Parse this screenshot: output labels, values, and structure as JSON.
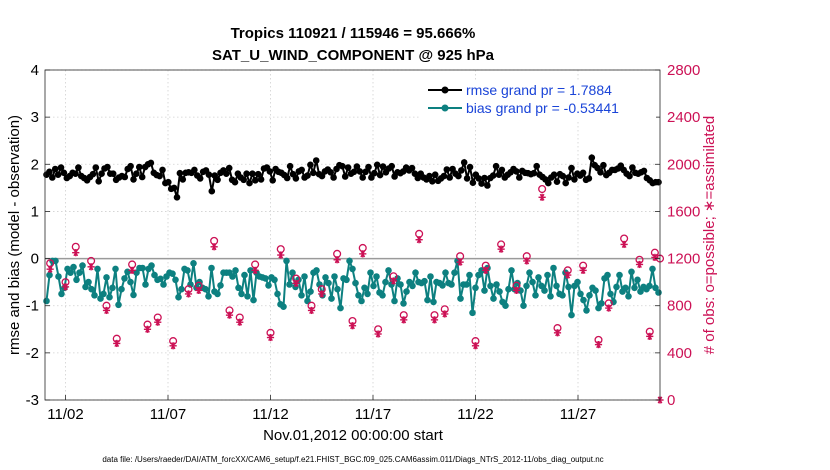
{
  "chart_data": {
    "type": "line",
    "title": "Tropics 110921 / 115946 = 95.666%",
    "subtitle": "SAT_U_WIND_COMPONENT @ 925 hPa",
    "xlabel": "Nov.01,2012 00:00:00 start",
    "ylabel_left": "rmse and bias (model - observation)",
    "ylabel_right": "# of obs: o=possible; ∗=assimilated",
    "xlim": [
      0.5,
      30.5
    ],
    "ylim_left": [
      -3,
      4
    ],
    "ylim_right": [
      0,
      2800
    ],
    "x_ticks": [
      1.5,
      6.5,
      11.5,
      16.5,
      21.5,
      26.5
    ],
    "x_tick_labels": [
      "11/02",
      "11/07",
      "11/12",
      "11/17",
      "11/22",
      "11/27"
    ],
    "y_ticks_left": [
      "-3",
      "-2",
      "-1",
      "0",
      "1",
      "2",
      "3",
      "4"
    ],
    "y_ticks_right": [
      "0",
      "400",
      "800",
      "1200",
      "1600",
      "2000",
      "2400",
      "2800"
    ],
    "zero_line": 0,
    "legend": {
      "placement": "top-right"
    },
    "series": [
      {
        "name": "rmse grand pr = 1.7884",
        "color": "#000000",
        "axis": "left",
        "values": [
          1.78,
          1.84,
          1.72,
          1.9,
          1.78,
          1.93,
          1.82,
          1.71,
          1.75,
          1.82,
          1.8,
          1.93,
          1.75,
          1.71,
          1.66,
          1.73,
          1.79,
          1.93,
          1.64,
          1.8,
          1.91,
          1.94,
          1.8,
          1.8,
          1.67,
          1.72,
          1.75,
          1.73,
          1.9,
          1.96,
          1.68,
          1.8,
          1.94,
          1.73,
          1.94,
          2.0,
          2.03,
          1.82,
          1.77,
          1.75,
          1.88,
          1.6,
          1.62,
          1.48,
          1.5,
          1.3,
          1.81,
          1.68,
          1.82,
          1.83,
          1.82,
          1.88,
          1.76,
          1.7,
          1.84,
          1.87,
          1.78,
          1.43,
          1.76,
          1.67,
          1.82,
          1.87,
          1.8,
          1.92,
          1.67,
          1.62,
          1.8,
          1.72,
          1.67,
          1.8,
          1.6,
          1.8,
          1.66,
          1.79,
          1.68,
          1.91,
          1.93,
          1.85,
          1.66,
          1.9,
          1.84,
          1.82,
          1.77,
          1.71,
          1.96,
          1.79,
          1.7,
          1.85,
          1.88,
          1.72,
          1.76,
          1.99,
          1.82,
          2.08,
          1.79,
          1.75,
          1.85,
          1.89,
          1.83,
          1.72,
          1.9,
          1.98,
          1.96,
          1.74,
          1.93,
          1.8,
          1.84,
          1.95,
          1.85,
          1.72,
          1.84,
          1.94,
          1.72,
          1.81,
          1.99,
          1.77,
          1.95,
          1.83,
          1.91,
          1.96,
          1.74,
          1.83,
          1.81,
          1.85,
          1.93,
          1.87,
          1.92,
          1.8,
          1.71,
          1.8,
          1.72,
          1.68,
          1.75,
          1.64,
          1.78,
          1.65,
          1.7,
          1.75,
          1.89,
          1.72,
          1.9,
          1.8,
          1.75,
          1.87,
          2.04,
          1.7,
          1.94,
          1.61,
          1.78,
          1.7,
          1.59,
          1.71,
          1.55,
          1.71,
          1.76,
          1.96,
          1.78,
          1.88,
          1.72,
          1.78,
          1.83,
          1.9,
          1.85,
          1.72,
          1.86,
          1.82,
          1.81,
          1.79,
          1.81,
          1.96,
          1.78,
          1.73,
          1.68,
          1.6,
          1.72,
          1.78,
          1.63,
          1.79,
          1.75,
          1.6,
          1.72,
          1.92,
          1.68,
          1.8,
          1.76,
          1.82,
          1.67,
          1.7,
          2.14,
          1.98,
          1.92,
          1.83,
          1.98,
          1.77,
          1.82,
          1.88,
          1.88,
          1.91,
          1.97,
          1.88,
          1.8,
          1.75,
          1.93,
          1.82,
          1.8,
          1.83,
          1.86,
          1.71,
          1.66,
          1.6,
          1.62,
          1.62
        ]
      },
      {
        "name": "bias grand pr = -0.53441",
        "color": "#0d8080",
        "axis": "left",
        "values": [
          -0.9,
          -0.35,
          -0.05,
          -0.05,
          -0.38,
          -0.75,
          -0.62,
          -0.22,
          -0.3,
          -0.18,
          -0.45,
          -0.3,
          -0.15,
          -0.6,
          -0.5,
          -0.65,
          -0.78,
          -0.22,
          -0.85,
          -0.75,
          -0.4,
          -0.82,
          -0.62,
          -0.22,
          -0.98,
          -0.65,
          -0.42,
          -0.28,
          -0.5,
          -0.77,
          -0.3,
          -0.2,
          -0.2,
          -0.55,
          -0.22,
          -0.15,
          -0.35,
          -0.45,
          -0.43,
          -0.55,
          -0.38,
          -0.3,
          -0.32,
          -0.45,
          -0.82,
          -0.65,
          -0.22,
          -0.25,
          -0.55,
          -0.1,
          -0.62,
          -0.5,
          -0.62,
          -0.65,
          -0.8,
          -0.2,
          -0.7,
          -0.75,
          -0.57,
          -0.3,
          -0.3,
          -0.3,
          -0.38,
          -0.25,
          -0.62,
          -0.75,
          -0.35,
          -0.8,
          -0.25,
          -0.88,
          -0.3,
          -0.38,
          -0.4,
          -0.42,
          -0.57,
          -0.4,
          -0.45,
          -0.75,
          -0.97,
          -1.02,
          -0.05,
          -0.55,
          -0.3,
          -0.6,
          -0.45,
          -0.78,
          -0.38,
          -0.9,
          -0.7,
          -0.3,
          -0.25,
          -0.55,
          -0.78,
          -0.4,
          -0.52,
          -0.85,
          -0.38,
          -0.65,
          -1.05,
          -0.42,
          -0.45,
          -0.05,
          -0.22,
          -0.52,
          -0.78,
          -0.9,
          -0.62,
          -0.75,
          -0.3,
          -0.58,
          -0.38,
          -0.72,
          -0.78,
          -0.5,
          -0.25,
          -0.55,
          -0.9,
          -0.42,
          -0.55,
          -0.95,
          -0.7,
          -0.5,
          -0.58,
          -0.3,
          -0.5,
          -0.52,
          -0.48,
          -0.88,
          -0.38,
          -0.92,
          -0.5,
          -0.52,
          -0.57,
          -0.3,
          -0.52,
          -0.55,
          -0.3,
          -0.05,
          -0.85,
          -0.55,
          -0.55,
          -0.35,
          -1.15,
          -0.62,
          -0.35,
          -0.25,
          -0.68,
          -0.2,
          -0.58,
          -0.85,
          -0.55,
          -0.7,
          -0.92,
          -1.0,
          -0.65,
          -0.25,
          -0.65,
          -0.52,
          -0.68,
          -1.0,
          -0.58,
          -0.3,
          -0.5,
          -0.78,
          -0.4,
          -0.58,
          -0.68,
          -0.35,
          -0.8,
          -0.2,
          -0.58,
          -0.75,
          -0.78,
          -0.3,
          -0.6,
          -1.2,
          -0.58,
          -0.5,
          -0.75,
          -0.88,
          -1.1,
          -0.78,
          -0.62,
          -0.68,
          -1.05,
          -0.95,
          -0.42,
          -0.35,
          -0.75,
          -0.92,
          -0.6,
          -0.35,
          -0.7,
          -0.62,
          -0.8,
          -0.28,
          -0.62,
          -0.45,
          -0.7,
          -0.6,
          -0.65,
          -0.58,
          -0.22,
          -0.62,
          -0.72
        ]
      },
      {
        "name": "obs possible",
        "type": "scatter",
        "marker": "o",
        "color": "#cc1155",
        "axis": "right",
        "x": [
          0.75,
          1.5,
          2.0,
          2.75,
          3.5,
          4.0,
          4.75,
          5.5,
          6.0,
          6.75,
          7.5,
          8.0,
          8.75,
          9.5,
          10.0,
          10.75,
          11.5,
          12.0,
          12.75,
          13.5,
          14.0,
          14.75,
          15.5,
          16.0,
          16.75,
          17.5,
          18.0,
          18.75,
          19.5,
          20.0,
          20.75,
          21.5,
          22.0,
          22.75,
          23.5,
          24.0,
          24.75,
          25.5,
          26.0,
          26.75,
          27.5,
          28.0,
          28.75,
          29.5,
          30.0,
          30.25,
          30.5
        ],
        "values": [
          1160,
          1000,
          1300,
          1180,
          800,
          520,
          1150,
          640,
          700,
          500,
          940,
          970,
          1350,
          760,
          700,
          1150,
          570,
          1280,
          1030,
          800,
          940,
          1240,
          670,
          1290,
          600,
          1050,
          720,
          1410,
          720,
          770,
          1220,
          500,
          1140,
          1320,
          970,
          1220,
          1790,
          610,
          1100,
          1140,
          510,
          820,
          1370,
          1190,
          580,
          1250,
          1200
        ]
      },
      {
        "name": "obs assimilated",
        "type": "scatter",
        "marker": "*",
        "color": "#cc1155",
        "axis": "right",
        "x": [
          0.75,
          1.5,
          2.0,
          2.75,
          3.5,
          4.0,
          4.75,
          5.5,
          6.0,
          6.75,
          7.5,
          8.0,
          8.75,
          9.5,
          10.0,
          10.75,
          11.5,
          12.0,
          12.75,
          13.5,
          14.0,
          14.75,
          15.5,
          16.0,
          16.75,
          17.5,
          18.0,
          18.75,
          19.5,
          20.0,
          20.75,
          21.5,
          22.0,
          22.75,
          23.5,
          24.0,
          24.75,
          25.5,
          26.0,
          26.75,
          27.5,
          28.0,
          28.75,
          29.5,
          30.0,
          30.25,
          30.5
        ],
        "values": [
          1110,
          960,
          1250,
          1130,
          760,
          480,
          1100,
          600,
          660,
          460,
          900,
          930,
          1300,
          720,
          660,
          1100,
          530,
          1230,
          990,
          760,
          900,
          1190,
          630,
          1240,
          560,
          1010,
          680,
          1360,
          680,
          730,
          1170,
          460,
          1100,
          1280,
          930,
          1180,
          1720,
          570,
          1060,
          1100,
          470,
          780,
          1320,
          1150,
          540,
          1210,
          0
        ]
      }
    ],
    "footer": "data file: /Users/raeder/DAI/ATM_forcXX/CAM6_setup/f.e21.FHIST_BGC.f09_025.CAM6assim.011/Diags_NTrS_2012-11/obs_diag_output.nc"
  }
}
